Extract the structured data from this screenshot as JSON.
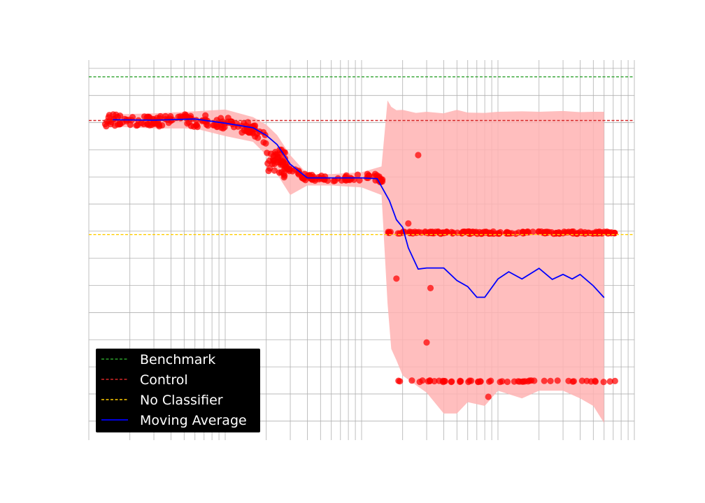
{
  "chart_data": {
    "type": "scatter",
    "title": "",
    "xlabel": "",
    "ylabel": "",
    "x_scale": "log",
    "xlim": [
      1,
      10000
    ],
    "ylim": [
      0,
      100
    ],
    "grid": true,
    "colors": {
      "benchmark": "#2ca02c",
      "control": "#d62728",
      "no_classifier": "#ffcc00",
      "moving_average": "#0000ff",
      "points": "#ff0000",
      "band": "#ffb3b3"
    },
    "reference_lines": [
      {
        "name": "Benchmark",
        "y": 95.6,
        "style": "dashed",
        "color": "#2ca02c"
      },
      {
        "name": "Control",
        "y": 84.1,
        "style": "dashed",
        "color": "#d62728"
      },
      {
        "name": "No Classifier",
        "y": 54.1,
        "style": "dashed",
        "color": "#ffcc00"
      }
    ],
    "moving_average": {
      "name": "Moving Average",
      "x": [
        1.5,
        3,
        6,
        10,
        16,
        20,
        24,
        30,
        40,
        60,
        100,
        130,
        160,
        180,
        200,
        220,
        260,
        300,
        400,
        500,
        600,
        700,
        800,
        1000,
        1200,
        1500,
        2000,
        2500,
        3000,
        3500,
        4000,
        5000,
        6000
      ],
      "y": [
        84.3,
        84.2,
        84.5,
        83.4,
        82.2,
        80.2,
        77.8,
        72.6,
        69.0,
        69.0,
        69.0,
        68.8,
        63.0,
        58.0,
        56.0,
        50.6,
        45.0,
        45.3,
        45.3,
        42.0,
        40.4,
        37.6,
        37.6,
        42.4,
        44.3,
        42.4,
        45.2,
        42.3,
        43.6,
        42.4,
        43.6,
        40.6,
        37.5
      ]
    },
    "band": {
      "x": [
        1.5,
        3,
        6,
        10,
        16,
        20,
        24,
        30,
        40,
        60,
        100,
        140,
        155,
        165,
        180,
        200,
        250,
        300,
        400,
        500,
        600,
        800,
        1000,
        1500,
        2000,
        3000,
        4000,
        5000,
        6000
      ],
      "upper": [
        85.7,
        86.0,
        86.5,
        87.0,
        85.0,
        83.0,
        80.3,
        75.0,
        70.0,
        70.0,
        70.5,
        72.0,
        89.4,
        87.7,
        86.8,
        86.9,
        86.1,
        86.4,
        86.0,
        86.9,
        86.2,
        86.1,
        86.4,
        86.5,
        86.4,
        86.6,
        86.3,
        86.4,
        86.4
      ],
      "lower": [
        82.5,
        82.0,
        82.0,
        80.0,
        78.5,
        75.0,
        70.0,
        64.5,
        67.0,
        67.0,
        66.5,
        64.5,
        36.0,
        24.0,
        21.0,
        17.0,
        14.5,
        12.5,
        7.0,
        7.0,
        10.0,
        9.0,
        13.0,
        11.0,
        13.0,
        13.0,
        11.0,
        9.0,
        4.5
      ]
    },
    "clusters": [
      {
        "name": "scatter-points-upper-plateau",
        "x": [
          1.3,
          2.0,
          3.0,
          4.0,
          5.0,
          6.0,
          8.0,
          10.0,
          14.0,
          18.0,
          20.0
        ],
        "y": [
          84.0,
          84.5,
          84.0,
          84.2,
          84.5,
          83.7,
          84.3,
          83.4,
          82.4,
          80.8,
          78.5
        ]
      },
      {
        "name": "scatter-points-middle-plateau",
        "x": [
          24,
          30,
          40,
          60,
          90,
          110,
          130,
          145
        ],
        "y": [
          74.0,
          71.0,
          68.8,
          69.0,
          69.0,
          69.1,
          69.3,
          67.5
        ]
      },
      {
        "name": "scatter-points-upper-band",
        "x": [
          160,
          300,
          500,
          800,
          1200,
          2000,
          3000,
          5000,
          7500
        ],
        "y": [
          54.6,
          54.6,
          54.6,
          54.6,
          54.6,
          54.6,
          54.6,
          54.6,
          54.6
        ]
      },
      {
        "name": "scatter-points-lower-band",
        "x": [
          170,
          300,
          600,
          1200,
          2500,
          5000,
          7500
        ],
        "y": [
          15.5,
          15.5,
          15.5,
          15.5,
          15.5,
          15.5,
          15.5
        ]
      }
    ],
    "outliers": {
      "x": [
        220,
        260,
        320,
        180,
        300,
        850
      ],
      "y": [
        57,
        75,
        40.0,
        42.5,
        25.7,
        11.4
      ]
    },
    "legend": {
      "position": "lower-left",
      "entries": [
        "Benchmark",
        "Control",
        "No Classifier",
        "Moving Average"
      ]
    }
  }
}
